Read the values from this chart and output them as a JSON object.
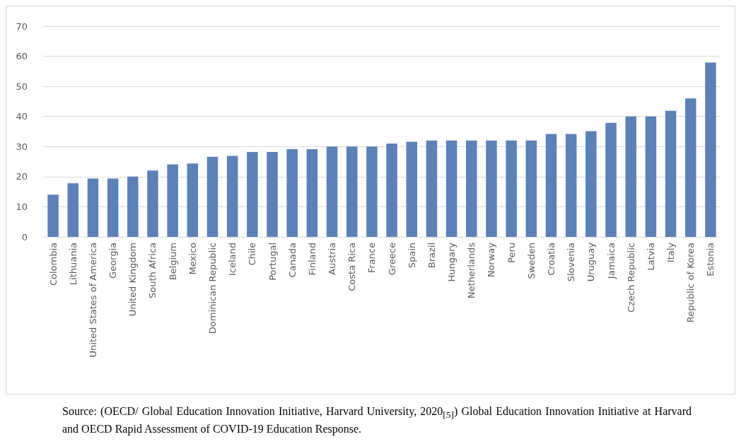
{
  "chart_data": {
    "type": "bar",
    "categories": [
      "Colombia",
      "Lithuania",
      "United States of America",
      "Georgia",
      "United Kingdom",
      "South Africa",
      "Belgium",
      "Mexico",
      "Dominican Republic",
      "Iceland",
      "Chile",
      "Portugal",
      "Canada",
      "Finland",
      "Austria",
      "Costa Rica",
      "France",
      "Greece",
      "Spain",
      "Brazil",
      "Hungary",
      "Netherlands",
      "Norway",
      "Peru",
      "Sweden",
      "Croatia",
      "Slovenia",
      "Uruguay",
      "Jamaica",
      "Czech Republic",
      "Latvia",
      "Italy",
      "Republic of Korea",
      "Estonia"
    ],
    "values": [
      14,
      17.8,
      19.4,
      19.4,
      20,
      22,
      24.1,
      24.4,
      26.6,
      26.9,
      28.2,
      28.2,
      29.1,
      29.1,
      30,
      30,
      30,
      31,
      31.6,
      32,
      32,
      32,
      32,
      32,
      32,
      34.2,
      34.2,
      35.1,
      37.9,
      40,
      40,
      41.9,
      46,
      57.9
    ],
    "color": "#5b81b8",
    "ylim": [
      0,
      70
    ],
    "yticks": [
      0,
      10,
      20,
      30,
      40,
      50,
      60,
      70
    ],
    "grid": "y",
    "annotations": [
      "Source: (OECD/ Global Education Innovation Initiative, Harvard University, 2020$_{[5]}$) Global Education Innovation Initiative at Harvard and OECD Rapid Assessment of COVID-19 Education Response."
    ]
  }
}
